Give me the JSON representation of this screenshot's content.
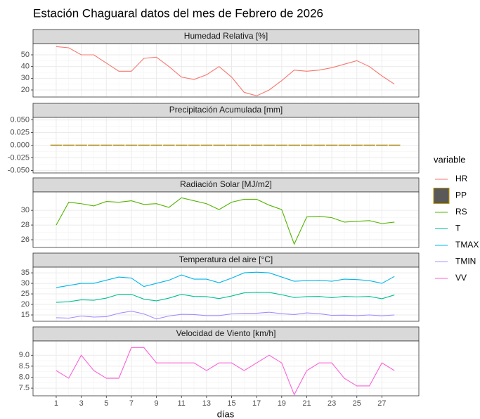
{
  "chart_data": {
    "type": "line",
    "title": "Estación Chaguaral datos del mes de Febrero de 2026",
    "x_label": "días",
    "legend_title": "variable",
    "legend_position": "right",
    "grid": true,
    "x": [
      1,
      2,
      3,
      4,
      5,
      6,
      7,
      8,
      9,
      10,
      11,
      12,
      13,
      14,
      15,
      16,
      17,
      18,
      19,
      20,
      21,
      22,
      23,
      24,
      25,
      26,
      27,
      28
    ],
    "xlim": [
      -0.85,
      29.95
    ],
    "xticks": [
      1,
      3,
      5,
      7,
      9,
      11,
      13,
      15,
      17,
      19,
      21,
      23,
      25,
      27
    ],
    "panels": [
      {
        "title": "Humedad Relativa [%]",
        "ylim": [
          14,
          59.6
        ],
        "yticks": [
          20,
          30,
          40,
          50
        ],
        "series": [
          {
            "name": "HR",
            "color": "#F8766D",
            "geom": "line",
            "values": [
              57,
              56,
              50,
              50,
              43,
              36,
              36,
              47,
              48,
              40,
              31,
              29,
              33,
              40,
              31,
              18,
              15,
              20,
              28,
              37,
              36,
              37,
              39,
              42,
              45,
              40,
              32,
              25
            ]
          }
        ]
      },
      {
        "title": "Precipitación Acumulada [mm]",
        "ylim": [
          -0.055,
          0.055
        ],
        "yticks": [
          {
            "value": 0.05,
            "label": "0.050"
          },
          {
            "value": 0.025,
            "label": "0.025"
          },
          {
            "value": 0,
            "label": "0.000"
          },
          {
            "value": -0.025,
            "label": "-0.025"
          },
          {
            "value": -0.05,
            "label": "-0.050"
          }
        ],
        "series": [
          {
            "name": "PP",
            "color": "#C49A00",
            "geom": "bar",
            "values": [
              0,
              0,
              0,
              0,
              0,
              0,
              0,
              0,
              0,
              0,
              0,
              0,
              0,
              0,
              0,
              0,
              0,
              0,
              0,
              0,
              0,
              0,
              0,
              0,
              0,
              0,
              0,
              0
            ]
          }
        ]
      },
      {
        "title": "Radiación Solar [MJ/m2]",
        "ylim": [
          24.95,
          32.5
        ],
        "yticks": [
          26,
          28,
          30
        ],
        "series": [
          {
            "name": "RS",
            "color": "#53B400",
            "geom": "line",
            "values": [
              28,
              31.1,
              30.9,
              30.6,
              31.2,
              31.1,
              31.3,
              30.8,
              30.9,
              30.4,
              31.7,
              31.3,
              30.9,
              30.1,
              31.1,
              31.5,
              31.5,
              30.7,
              30.1,
              25.4,
              29.1,
              29.2,
              29,
              28.4,
              28.5,
              28.6,
              28.2,
              28.4
            ]
          }
        ]
      },
      {
        "title": "Temperatura del aire [°C]",
        "ylim": [
          12,
          37.7
        ],
        "yticks": [
          15,
          20,
          25,
          30,
          35
        ],
        "series": [
          {
            "name": "T",
            "color": "#00C094",
            "geom": "line",
            "values": [
              21,
              21.3,
              22.2,
              22,
              23,
              24.8,
              24.8,
              22.5,
              21.7,
              23,
              24.8,
              23.8,
              23.7,
              22.8,
              24,
              25.5,
              25.8,
              25.7,
              24.6,
              23.3,
              23.7,
              23.8,
              23.2,
              23.8,
              23.6,
              23.8,
              22.7,
              24.5
            ]
          },
          {
            "name": "TMAX",
            "color": "#00B6EB",
            "geom": "line",
            "values": [
              28,
              29,
              30,
              30,
              31.5,
              33,
              32.5,
              28.5,
              30,
              31.5,
              34,
              32,
              32,
              30.3,
              32.5,
              35,
              35.3,
              35,
              33,
              31,
              31.3,
              31.5,
              31,
              32,
              31.8,
              31.3,
              30,
              33.3
            ]
          },
          {
            "name": "TMIN",
            "color": "#A58AFF",
            "geom": "line",
            "values": [
              13.7,
              13.5,
              14.5,
              14,
              14.2,
              15.8,
              16.8,
              15.5,
              13.1,
              14.5,
              15.3,
              15.2,
              14.7,
              14.7,
              15.5,
              15.8,
              15.8,
              16.3,
              15.6,
              15.2,
              16,
              15.6,
              14.8,
              14.9,
              14.7,
              15,
              14.6,
              15
            ]
          }
        ]
      },
      {
        "title": "Velocidad de Viento [km/h]",
        "ylim": [
          7.15,
          9.65
        ],
        "yticks": [
          7.5,
          {
            "value": 8,
            "label": "8.0"
          },
          8.5,
          {
            "value": 9,
            "label": "9.0"
          }
        ],
        "series": [
          {
            "name": "VV",
            "color": "#FB61D7",
            "geom": "line",
            "values": [
              8.3,
              7.95,
              9.0,
              8.3,
              7.95,
              7.95,
              9.35,
              9.35,
              8.65,
              8.65,
              8.65,
              8.65,
              8.3,
              8.65,
              8.65,
              8.3,
              8.65,
              9.0,
              8.65,
              7.2,
              8.3,
              8.65,
              8.65,
              7.95,
              7.6,
              7.6,
              8.65,
              8.3
            ]
          }
        ]
      }
    ]
  }
}
